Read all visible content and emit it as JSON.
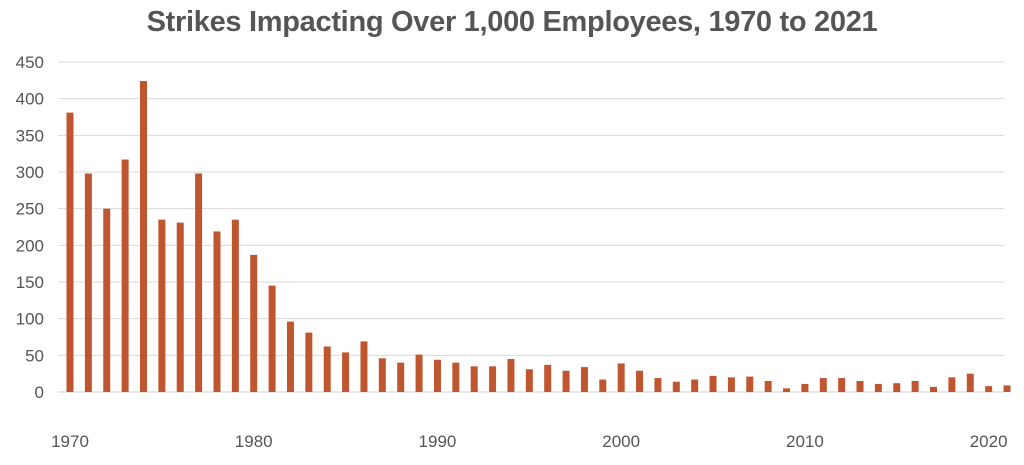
{
  "chart_data": {
    "type": "bar",
    "title": "Strikes Impacting Over 1,000 Employees, 1970 to 2021",
    "xlabel": "",
    "ylabel": "",
    "x": [
      1970,
      1971,
      1972,
      1973,
      1974,
      1975,
      1976,
      1977,
      1978,
      1979,
      1980,
      1981,
      1982,
      1983,
      1984,
      1985,
      1986,
      1987,
      1988,
      1989,
      1990,
      1991,
      1992,
      1993,
      1994,
      1995,
      1996,
      1997,
      1998,
      1999,
      2000,
      2001,
      2002,
      2003,
      2004,
      2005,
      2006,
      2007,
      2008,
      2009,
      2010,
      2011,
      2012,
      2013,
      2014,
      2015,
      2016,
      2017,
      2018,
      2019,
      2020,
      2021
    ],
    "values": [
      381,
      298,
      250,
      317,
      424,
      235,
      231,
      298,
      219,
      235,
      187,
      145,
      96,
      81,
      62,
      54,
      69,
      46,
      40,
      51,
      44,
      40,
      35,
      35,
      45,
      31,
      37,
      29,
      34,
      17,
      39,
      29,
      19,
      14,
      17,
      22,
      20,
      21,
      15,
      5,
      11,
      19,
      19,
      15,
      11,
      12,
      15,
      7,
      20,
      25,
      8,
      9
    ],
    "ylim": [
      0,
      450
    ],
    "yticks": [
      0,
      50,
      100,
      150,
      200,
      250,
      300,
      350,
      400,
      450
    ],
    "xticks": [
      1970,
      1980,
      1990,
      2000,
      2010,
      2020
    ],
    "grid": "horizontal",
    "bar_color": "#c0562f",
    "grid_color": "#d9d9d9",
    "text_color": "#555555"
  }
}
